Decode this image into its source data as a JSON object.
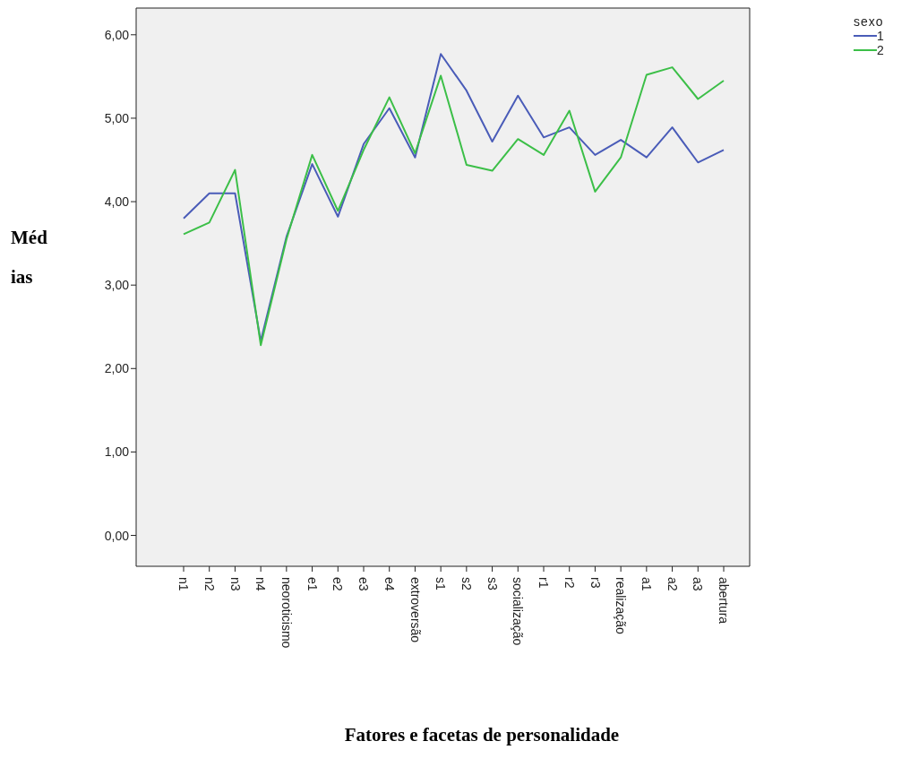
{
  "chart_data": {
    "type": "line",
    "xlabel": "Fatores e facetas de personalidade",
    "ylabel": "Médias",
    "legend_title": "sexo",
    "legend": "top right",
    "grid": false,
    "marker": "none",
    "line_style": "solid",
    "categories": [
      "n1",
      "n2",
      "n3",
      "n4",
      "neoroticismo",
      "e1",
      "e2",
      "e3",
      "e4",
      "extroversão",
      "s1",
      "s2",
      "s3",
      "socialização",
      "r1",
      "r2",
      "r3",
      "realização",
      "a1",
      "a2",
      "a3",
      "abertura"
    ],
    "series": [
      {
        "name": "1",
        "color": "#4a5cb8",
        "values": [
          3.8,
          4.1,
          4.1,
          2.33,
          3.58,
          4.45,
          3.82,
          4.69,
          5.12,
          4.53,
          5.77,
          5.33,
          4.72,
          5.27,
          4.77,
          4.89,
          4.56,
          4.74,
          4.53,
          4.89,
          4.47,
          4.62
        ]
      },
      {
        "name": "2",
        "color": "#3cbf48",
        "values": [
          3.61,
          3.75,
          4.38,
          2.28,
          3.55,
          4.56,
          3.89,
          4.62,
          5.25,
          4.58,
          5.51,
          4.44,
          4.37,
          4.75,
          4.56,
          5.09,
          4.12,
          4.53,
          5.52,
          5.61,
          5.23,
          5.45
        ]
      }
    ],
    "ylim": [
      -0.37,
      6.32
    ],
    "yticks": [
      {
        "value": 0,
        "label": "0,00"
      },
      {
        "value": 1,
        "label": "1,00"
      },
      {
        "value": 2,
        "label": "2,00"
      },
      {
        "value": 3,
        "label": "3,00"
      },
      {
        "value": 4,
        "label": "4,00"
      },
      {
        "value": 5,
        "label": "5,00"
      },
      {
        "value": 6,
        "label": "6,00"
      }
    ]
  }
}
